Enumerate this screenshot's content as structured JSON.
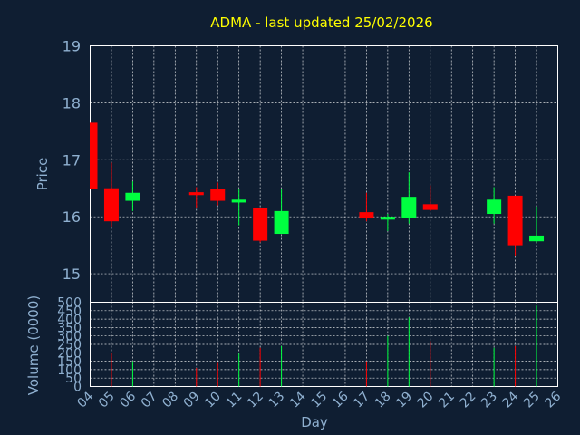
{
  "chart_data": {
    "type": "candlestick",
    "title": "ADMA - last updated 25/02/2026",
    "xlabel": "Day",
    "price_panel": {
      "ylabel": "Price",
      "ylim": [
        14.5,
        19
      ],
      "yticks": [
        "15",
        "16",
        "17",
        "18",
        "19"
      ],
      "grid": true
    },
    "volume_panel": {
      "ylabel": "Volume (0000)",
      "ylim": [
        0,
        500
      ],
      "yticks": [
        "0",
        "50",
        "100",
        "150",
        "200",
        "250",
        "300",
        "350",
        "400",
        "450",
        "500"
      ],
      "grid": true
    },
    "x_ticks": [
      "04",
      "05",
      "06",
      "07",
      "08",
      "09",
      "10",
      "11",
      "12",
      "13",
      "14",
      "15",
      "16",
      "17",
      "18",
      "19",
      "20",
      "21",
      "22",
      "23",
      "24",
      "25",
      "26"
    ],
    "colors": {
      "up": "#00ff40",
      "down": "#ff0000",
      "grid": "#ffffff",
      "axis_text": "#8fb0d0",
      "title": "#ffff00",
      "background": "#0f1e32"
    },
    "candles": [
      {
        "day": "04",
        "open": 17.65,
        "high": 17.65,
        "low": 16.48,
        "close": 16.48,
        "volume": 0
      },
      {
        "day": "05",
        "open": 16.5,
        "high": 16.95,
        "low": 15.82,
        "close": 15.92,
        "volume": 200
      },
      {
        "day": "06",
        "open": 16.28,
        "high": 16.62,
        "low": 16.1,
        "close": 16.42,
        "volume": 150
      },
      {
        "day": "09",
        "open": 16.43,
        "high": 16.52,
        "low": 16.15,
        "close": 16.38,
        "volume": 110
      },
      {
        "day": "10",
        "open": 16.48,
        "high": 16.6,
        "low": 16.2,
        "close": 16.28,
        "volume": 140
      },
      {
        "day": "11",
        "open": 16.25,
        "high": 16.48,
        "low": 15.85,
        "close": 16.3,
        "volume": 195
      },
      {
        "day": "12",
        "open": 16.15,
        "high": 16.15,
        "low": 15.55,
        "close": 15.58,
        "volume": 230
      },
      {
        "day": "13",
        "open": 15.7,
        "high": 16.48,
        "low": 15.7,
        "close": 16.1,
        "volume": 240
      },
      {
        "day": "17",
        "open": 16.08,
        "high": 16.42,
        "low": 15.92,
        "close": 15.97,
        "volume": 150
      },
      {
        "day": "18",
        "open": 15.95,
        "high": 16.05,
        "low": 15.75,
        "close": 16.0,
        "volume": 300
      },
      {
        "day": "19",
        "open": 15.98,
        "high": 16.78,
        "low": 15.88,
        "close": 16.35,
        "volume": 410
      },
      {
        "day": "20",
        "open": 16.22,
        "high": 16.55,
        "low": 16.1,
        "close": 16.12,
        "volume": 270
      },
      {
        "day": "23",
        "open": 16.05,
        "high": 16.52,
        "low": 15.88,
        "close": 16.3,
        "volume": 230
      },
      {
        "day": "24",
        "open": 16.37,
        "high": 16.37,
        "low": 15.32,
        "close": 15.5,
        "volume": 240
      },
      {
        "day": "25",
        "open": 15.57,
        "high": 16.18,
        "low": 15.55,
        "close": 15.67,
        "volume": 480
      }
    ]
  }
}
